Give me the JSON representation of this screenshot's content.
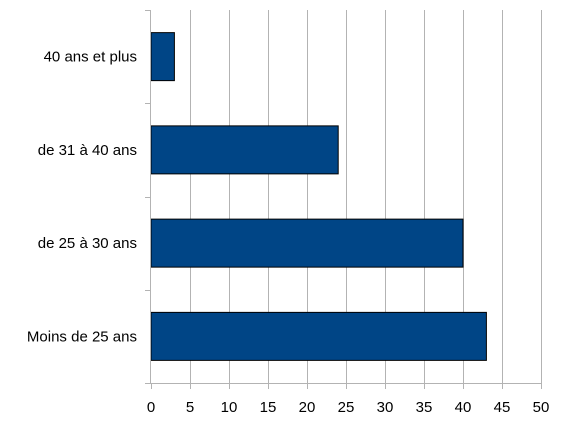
{
  "chart_data": {
    "type": "bar",
    "orientation": "horizontal",
    "categories": [
      "40 ans et plus",
      "de 31 à 40 ans",
      "de 25 à 30 ans",
      "Moins de 25 ans"
    ],
    "values": [
      3,
      24,
      40,
      43
    ],
    "xlim": [
      0,
      50
    ],
    "xticks": [
      "0",
      "5",
      "10",
      "15",
      "20",
      "25",
      "30",
      "35",
      "40",
      "45",
      "50"
    ],
    "grid": "vertical",
    "bar_color": "#004586",
    "bar_edge_color": "#000000",
    "grid_color": "#b3b3b3"
  }
}
